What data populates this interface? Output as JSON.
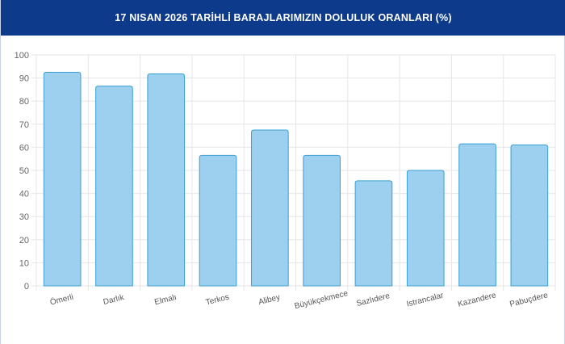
{
  "header": {
    "title": "17 NISAN 2026 TARİHLİ BARAJLARIMIZIN DOLULUK ORANLARI (%)"
  },
  "colors": {
    "header_bg": "#0d3a8a",
    "bar_fill": "#9dcfee",
    "bar_stroke": "#3aa0d4",
    "grid": "#e6e6e6"
  },
  "chart_data": {
    "type": "bar",
    "title": "17 NISAN 2026 TARİHLİ BARAJLARIMIZIN DOLULUK ORANLARI (%)",
    "xlabel": "",
    "ylabel": "",
    "categories": [
      "Ömerli",
      "Darlık",
      "Elmalı",
      "Terkos",
      "Alibey",
      "Büyükçekmece",
      "Sazlıdere",
      "Istrancalar",
      "Kazandere",
      "Pabuçdere"
    ],
    "values": [
      92.5,
      86.5,
      91.8,
      56.5,
      67.5,
      56.5,
      45.5,
      50.0,
      61.5,
      61.0
    ],
    "ylim": [
      0,
      100
    ],
    "yticks": [
      0,
      10,
      20,
      30,
      40,
      50,
      60,
      70,
      80,
      90,
      100
    ],
    "grid": true,
    "legend": "none"
  }
}
